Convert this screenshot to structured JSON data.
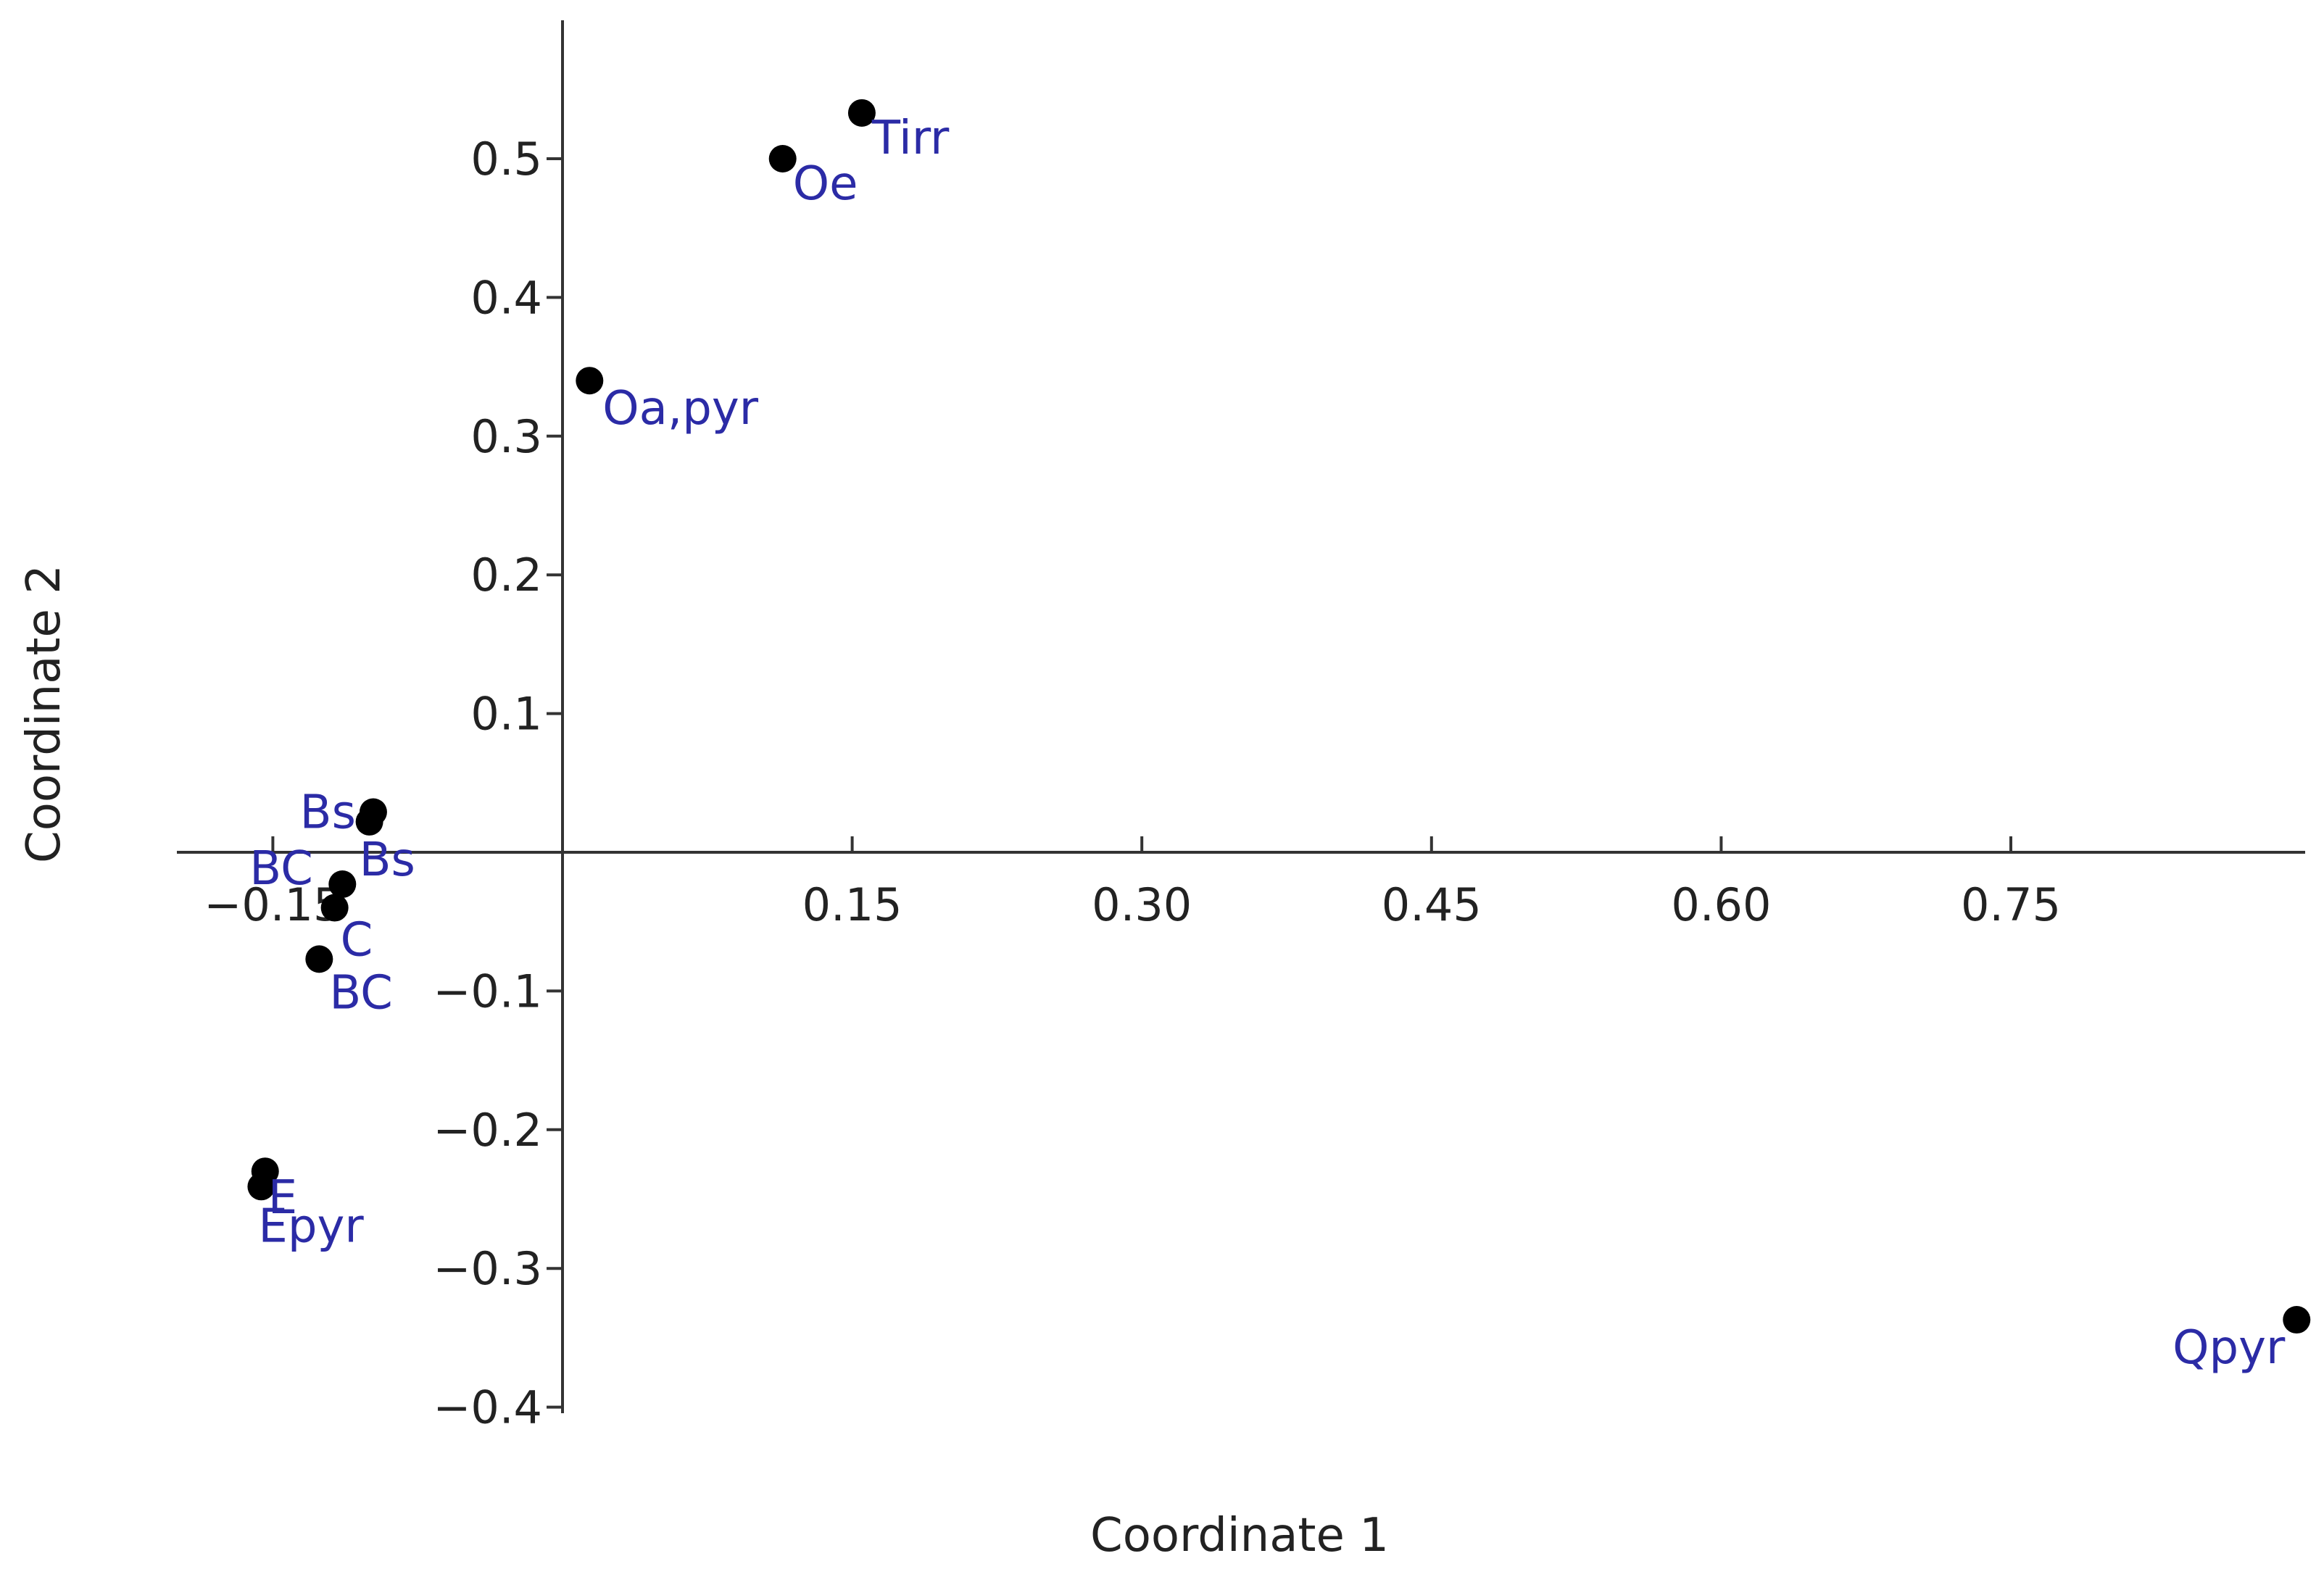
{
  "chart_data": {
    "type": "scatter",
    "title": "",
    "xlabel": "Coordinate 1",
    "ylabel": "Coordinate 2",
    "xlim": [
      -0.2,
      0.9
    ],
    "ylim": [
      -0.4,
      0.6
    ],
    "xticks": [
      -0.15,
      0.15,
      0.3,
      0.45,
      0.6,
      0.75
    ],
    "xtick_labels": [
      "−0.15",
      "0.15",
      "0.30",
      "0.45",
      "0.60",
      "0.75"
    ],
    "yticks": [
      -0.4,
      -0.3,
      -0.2,
      -0.1,
      0.1,
      0.2,
      0.3,
      0.4,
      0.5
    ],
    "ytick_labels": [
      "−0.4",
      "−0.3",
      "−0.2",
      "−0.1",
      "0.1",
      "0.2",
      "0.3",
      "0.4",
      "0.5"
    ],
    "grid": false,
    "point_color": "#000000",
    "label_color": "#2b2ba6",
    "points": [
      {
        "label": "Tirr",
        "x": 0.155,
        "y": 0.533
      },
      {
        "label": "Oe",
        "x": 0.114,
        "y": 0.5
      },
      {
        "label": "Oa,pyr",
        "x": 0.014,
        "y": 0.34
      },
      {
        "label": "Bs",
        "x": -0.098,
        "y": 0.029
      },
      {
        "label": "Bs",
        "x": -0.1,
        "y": 0.022
      },
      {
        "label": "BC",
        "x": -0.114,
        "y": -0.023
      },
      {
        "label": "C",
        "x": -0.118,
        "y": -0.04
      },
      {
        "label": "BC",
        "x": -0.126,
        "y": -0.077
      },
      {
        "label": "E",
        "x": -0.154,
        "y": -0.23
      },
      {
        "label": "Epyr",
        "x": -0.156,
        "y": -0.241
      },
      {
        "label": "Qpyr",
        "x": 0.898,
        "y": -0.337
      }
    ]
  }
}
